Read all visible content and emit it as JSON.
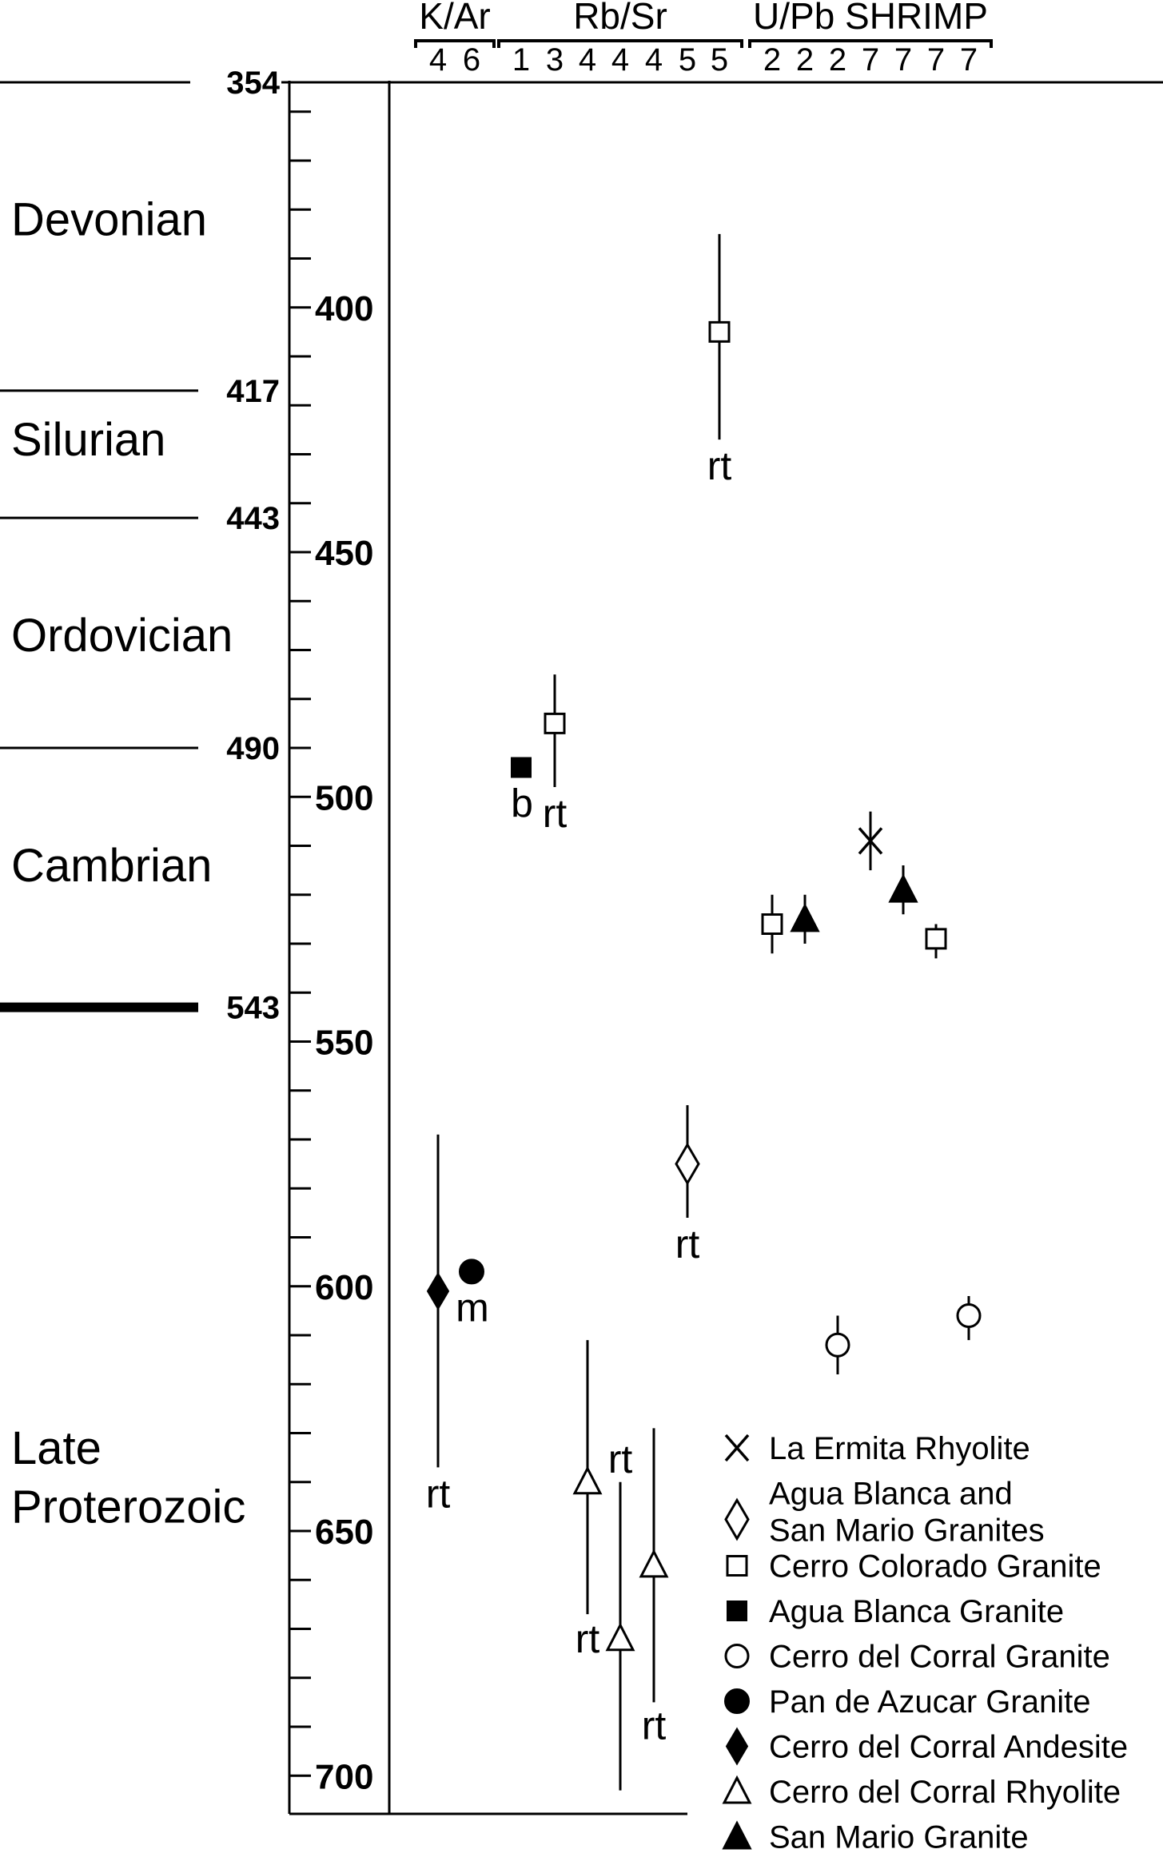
{
  "chart_data": {
    "type": "scatter",
    "orientation": "vertical",
    "yaxis": {
      "unit": "Ma",
      "range": [
        354,
        705
      ],
      "major_ticks": [
        400,
        450,
        500,
        550,
        600,
        650,
        700
      ],
      "minor_step": 10,
      "direction": "down"
    },
    "periods": [
      {
        "name": "Devonian",
        "label_age": 382
      },
      {
        "name": "Silurian",
        "label_age": 427
      },
      {
        "name": "Ordovician",
        "label_age": 467
      },
      {
        "name": "Cambrian",
        "label_age": 514
      },
      {
        "name": "Late",
        "label_age": 633
      },
      {
        "name": "Proterozoic",
        "label_age": 645
      }
    ],
    "boundaries": [
      {
        "age": 354,
        "label": "354",
        "bold": false
      },
      {
        "age": 417,
        "label": "417",
        "bold": false
      },
      {
        "age": 443,
        "label": "443",
        "bold": false
      },
      {
        "age": 490,
        "label": "490",
        "bold": false
      },
      {
        "age": 543,
        "label": "543",
        "bold": true
      }
    ],
    "methods": [
      {
        "name": "K/Ar",
        "refs": [
          "4",
          "6"
        ]
      },
      {
        "name": "Rb/Sr",
        "refs": [
          "1",
          "3",
          "4",
          "4",
          "4",
          "5",
          "5"
        ]
      },
      {
        "name": "U/Pb SHRIMP",
        "refs": [
          "2",
          "2",
          "2",
          "7",
          "7",
          "7",
          "7"
        ]
      }
    ],
    "points": [
      {
        "method": "K/Ar",
        "ref": "4",
        "series": "Cerro del Corral Andesite",
        "age": 601,
        "err_low": 569,
        "err_high": 637,
        "label": "rt"
      },
      {
        "method": "K/Ar",
        "ref": "6",
        "series": "Pan de Azucar Granite",
        "age": 597,
        "label": "m"
      },
      {
        "method": "Rb/Sr",
        "ref": "1",
        "series": "Agua Blanca Granite",
        "age": 494,
        "label": "b"
      },
      {
        "method": "Rb/Sr",
        "ref": "3",
        "series": "Cerro Colorado Granite",
        "age": 485,
        "err_low": 475,
        "err_high": 498,
        "label": "rt"
      },
      {
        "method": "Rb/Sr",
        "ref": "4",
        "series": "Cerro del Corral Rhyolite",
        "age": 640,
        "err_low": 611,
        "err_high": 667,
        "label": "rt"
      },
      {
        "method": "Rb/Sr",
        "ref": "4",
        "series": "Cerro del Corral Rhyolite",
        "age": 672,
        "err_low": 640,
        "err_high": 703,
        "label": "rt"
      },
      {
        "method": "Rb/Sr",
        "ref": "4",
        "series": "Cerro del Corral Rhyolite",
        "age": 657,
        "err_low": 629,
        "err_high": 685,
        "label": "rt"
      },
      {
        "method": "Rb/Sr",
        "ref": "5",
        "series": "Agua Blanca and San Mario Granites",
        "age": 575,
        "err_low": 563,
        "err_high": 586,
        "label": "rt"
      },
      {
        "method": "Rb/Sr",
        "ref": "5",
        "series": "Cerro Colorado Granite",
        "age": 405,
        "err_low": 385,
        "err_high": 427,
        "label": "rt"
      },
      {
        "method": "U/Pb SHRIMP",
        "ref": "2",
        "series": "Cerro Colorado Granite",
        "age": 526,
        "err_low": 520,
        "err_high": 532
      },
      {
        "method": "U/Pb SHRIMP",
        "ref": "2",
        "series": "San Mario Granite",
        "age": 525,
        "err_low": 520,
        "err_high": 530
      },
      {
        "method": "U/Pb SHRIMP",
        "ref": "2",
        "series": "Cerro del Corral Granite",
        "age": 612,
        "err_low": 606,
        "err_high": 618
      },
      {
        "method": "U/Pb SHRIMP",
        "ref": "7",
        "series": "La Ermita Rhyolite",
        "age": 509,
        "err_low": 503,
        "err_high": 515
      },
      {
        "method": "U/Pb SHRIMP",
        "ref": "7",
        "series": "San Mario Granite",
        "age": 519,
        "err_low": 514,
        "err_high": 524
      },
      {
        "method": "U/Pb SHRIMP",
        "ref": "7",
        "series": "Cerro Colorado Granite",
        "age": 529,
        "err_low": 526,
        "err_high": 533
      },
      {
        "method": "U/Pb SHRIMP",
        "ref": "7",
        "series": "Cerro del Corral Granite",
        "age": 606,
        "err_low": 602,
        "err_high": 611
      }
    ],
    "legend": {
      "placement": "bottom-right",
      "entries": [
        {
          "marker": "x",
          "lines": [
            "La Ermita Rhyolite"
          ]
        },
        {
          "marker": "diamond-open",
          "lines": [
            "Agua Blanca and",
            "San Mario Granites"
          ]
        },
        {
          "marker": "square-open",
          "lines": [
            "Cerro Colorado Granite"
          ]
        },
        {
          "marker": "square-filled",
          "lines": [
            "Agua Blanca Granite"
          ]
        },
        {
          "marker": "circle-open",
          "lines": [
            "Cerro del Corral Granite"
          ]
        },
        {
          "marker": "circle-filled",
          "lines": [
            "Pan de Azucar Granite"
          ]
        },
        {
          "marker": "diamond-filled",
          "lines": [
            "Cerro del Corral Andesite"
          ]
        },
        {
          "marker": "triangle-open",
          "lines": [
            "Cerro del Corral Rhyolite"
          ]
        },
        {
          "marker": "triangle-filled",
          "lines": [
            "San Mario Granite"
          ]
        }
      ]
    }
  }
}
